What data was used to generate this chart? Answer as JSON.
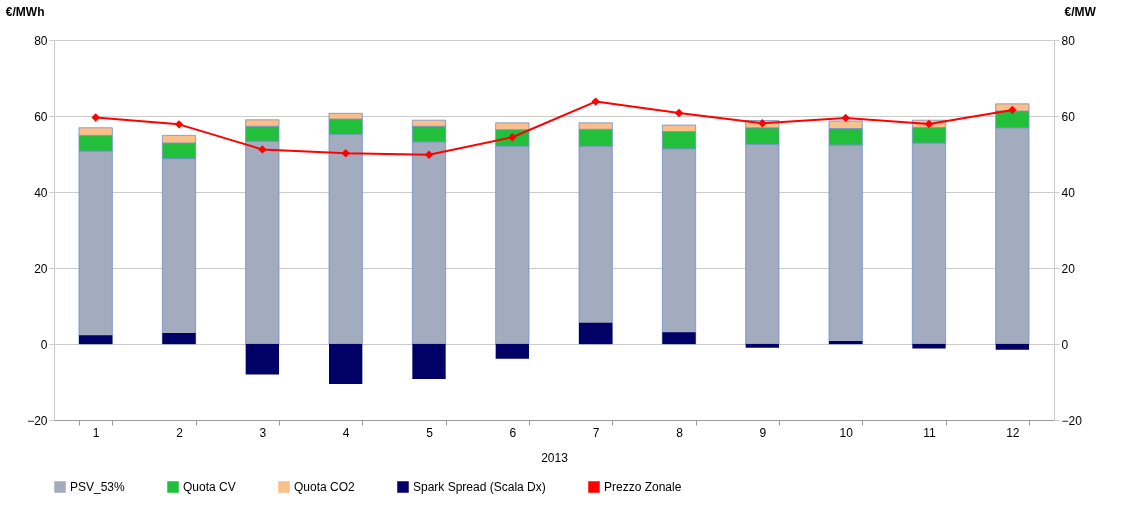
{
  "chart_data": {
    "type": "bar",
    "stacked": true,
    "ylabel": "€/MWh",
    "y2label": "€/MW",
    "xlabel": "2013",
    "categories": [
      "1",
      "2",
      "3",
      "4",
      "5",
      "6",
      "7",
      "8",
      "9",
      "10",
      "11",
      "12"
    ],
    "ylim": [
      -20,
      80
    ],
    "yticks": [
      -20,
      0,
      20,
      40,
      60,
      80
    ],
    "y2lim": [
      -20,
      80
    ],
    "y2ticks": [
      -20,
      0,
      20,
      40,
      60,
      80
    ],
    "grid": "y",
    "legend": "bottom",
    "marker": "diamond",
    "series": [
      {
        "name": "PSV_53%",
        "color": "#a3acbf",
        "values": [
          50.8,
          48.8,
          53.4,
          55.2,
          53.2,
          52.1,
          52.1,
          51.4,
          52.6,
          52.4,
          52.9,
          56.9
        ]
      },
      {
        "name": "Quota CV",
        "color": "#22c03a",
        "values": [
          4.1,
          4.1,
          3.9,
          4.0,
          4.1,
          4.3,
          4.4,
          4.5,
          4.3,
          4.3,
          4.1,
          4.4
        ]
      },
      {
        "name": "Quota CO2",
        "color": "#fbbf8a",
        "values": [
          2.0,
          2.0,
          1.7,
          1.5,
          1.6,
          1.8,
          1.7,
          1.7,
          1.9,
          2.0,
          1.9,
          1.9
        ]
      },
      {
        "name": "Spark Spread (Scala Dx)",
        "color": "#000066",
        "type": "bar",
        "axis": "y2",
        "values": [
          2.3,
          2.9,
          -8.0,
          -10.5,
          -9.2,
          -3.9,
          5.6,
          3.1,
          -1.0,
          0.8,
          -1.2,
          -1.5
        ]
      },
      {
        "name": "Prezzo Zonale",
        "color": "#ff0000",
        "type": "line",
        "values": [
          59.6,
          57.8,
          51.2,
          50.2,
          49.8,
          54.4,
          63.8,
          60.8,
          58.1,
          59.5,
          57.9,
          61.6
        ]
      }
    ]
  }
}
